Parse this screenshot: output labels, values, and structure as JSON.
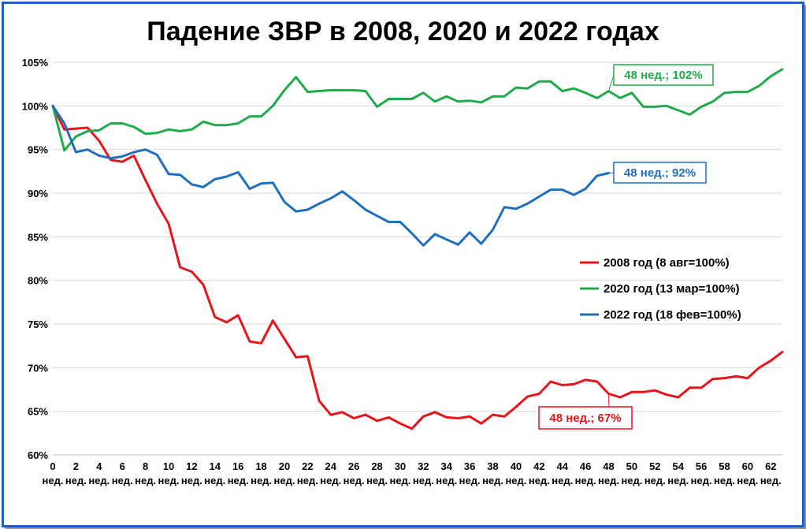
{
  "chart_data": {
    "type": "line",
    "title": "Падение ЗВР в 2008, 2020 и 2022 годах",
    "ylim": [
      60,
      105
    ],
    "yticks": [
      "105%",
      "100%",
      "95%",
      "90%",
      "85%",
      "80%",
      "75%",
      "70%",
      "65%",
      "60%"
    ],
    "ytick_values": [
      105,
      100,
      95,
      90,
      85,
      80,
      75,
      70,
      65,
      60
    ],
    "xticks": [
      "0",
      "2",
      "4",
      "6",
      "8",
      "10",
      "12",
      "14",
      "16",
      "18",
      "20",
      "22",
      "24",
      "26",
      "28",
      "30",
      "32",
      "34",
      "36",
      "38",
      "40",
      "42",
      "44",
      "46",
      "48",
      "50",
      "52",
      "54",
      "56",
      "58",
      "60",
      "62"
    ],
    "xtick_unit": "нед.",
    "xlim": [
      0,
      63
    ],
    "grid": "horizontal",
    "legend_position": "right-middle",
    "series": [
      {
        "name": "2008 год (8 авг=100%)",
        "color": "#e8141b",
        "values": [
          100,
          97.3,
          97.4,
          97.5,
          96.0,
          93.8,
          93.6,
          94.3,
          91.5,
          88.8,
          86.5,
          81.5,
          81.0,
          79.5,
          75.8,
          75.2,
          76.0,
          73.0,
          72.8,
          75.4,
          73.3,
          71.2,
          71.3,
          66.2,
          64.6,
          64.9,
          64.2,
          64.6,
          63.9,
          64.3,
          63.6,
          63.0,
          64.4,
          64.9,
          64.3,
          64.2,
          64.4,
          63.6,
          64.6,
          64.4,
          65.5,
          66.7,
          67.0,
          68.4,
          68.0,
          68.1,
          68.6,
          68.4,
          67.0,
          66.6,
          67.2,
          67.2,
          67.4,
          66.9,
          66.6,
          67.7,
          67.7,
          68.7,
          68.8,
          69.0,
          68.8,
          70.0,
          70.8,
          71.8
        ]
      },
      {
        "name": "2020 год (13 мар=100%)",
        "color": "#1faa4b",
        "values": [
          100,
          94.9,
          96.5,
          97.1,
          97.2,
          98.0,
          98.0,
          97.6,
          96.8,
          96.9,
          97.3,
          97.1,
          97.3,
          98.2,
          97.8,
          97.8,
          98.0,
          98.8,
          98.8,
          100.0,
          101.8,
          103.3,
          101.6,
          101.7,
          101.8,
          101.8,
          101.8,
          101.7,
          99.9,
          100.8,
          100.8,
          100.8,
          101.5,
          100.5,
          101.1,
          100.5,
          100.6,
          100.4,
          101.1,
          101.1,
          102.1,
          102.0,
          102.8,
          102.8,
          101.7,
          102.0,
          101.5,
          100.9,
          101.7,
          100.9,
          101.5,
          99.9,
          99.9,
          100.0,
          99.5,
          99.0,
          99.9,
          100.5,
          101.5,
          101.6,
          101.6,
          102.3,
          103.4,
          104.2
        ]
      },
      {
        "name": "2022 год (18 фев=100%)",
        "color": "#1f6fbf",
        "values": [
          100,
          98.0,
          94.7,
          95.0,
          94.3,
          94.0,
          94.2,
          94.7,
          95.0,
          94.4,
          92.2,
          92.1,
          91.0,
          90.7,
          91.6,
          91.9,
          92.4,
          90.5,
          91.1,
          91.2,
          89.0,
          87.9,
          88.1,
          88.8,
          89.4,
          90.2,
          89.2,
          88.1,
          87.4,
          86.7,
          86.7,
          85.4,
          84.0,
          85.3,
          84.7,
          84.1,
          85.5,
          84.2,
          85.8,
          88.4,
          88.2,
          88.8,
          89.6,
          90.4,
          90.4,
          89.8,
          90.5,
          92.0,
          92.3
        ]
      }
    ],
    "annotations": [
      {
        "text": "48 нед.; 102%",
        "series_index": 1,
        "x": 48,
        "y": 102,
        "color": "#1faa4b"
      },
      {
        "text": "48 нед.; 92%",
        "series_index": 2,
        "x": 48,
        "y": 92,
        "color": "#1f6fbf"
      },
      {
        "text": "48 нед.; 67%",
        "series_index": 0,
        "x": 48,
        "y": 67,
        "color": "#e8141b"
      }
    ]
  }
}
